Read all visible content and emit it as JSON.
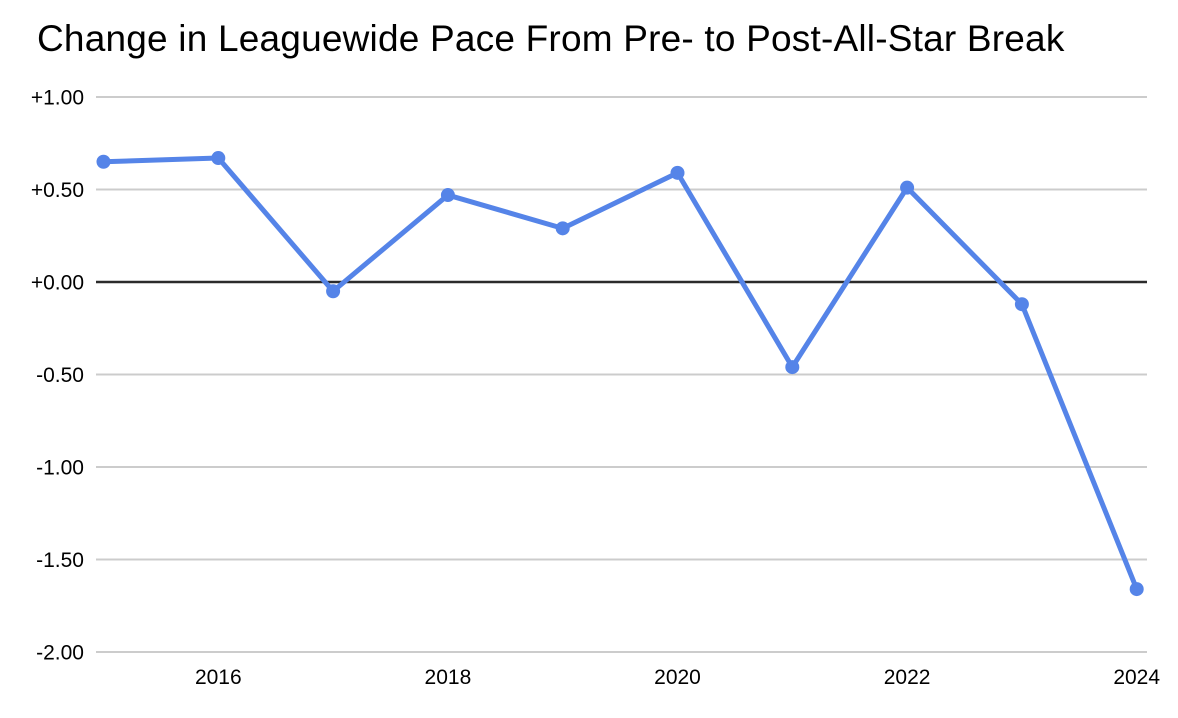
{
  "chart_data": {
    "type": "line",
    "title": "Change in Leaguewide Pace From Pre- to Post-All-Star Break",
    "xlabel": "",
    "ylabel": "",
    "x": [
      2015,
      2016,
      2017,
      2018,
      2019,
      2020,
      2021,
      2022,
      2023,
      2024
    ],
    "values": [
      0.65,
      0.67,
      -0.05,
      0.47,
      0.29,
      0.59,
      -0.46,
      0.51,
      -0.12,
      -1.66
    ],
    "xlim": [
      2015,
      2024
    ],
    "ylim": [
      -2.0,
      1.0
    ],
    "x_ticks": [
      {
        "value": 2016,
        "label": "2016"
      },
      {
        "value": 2018,
        "label": "2018"
      },
      {
        "value": 2020,
        "label": "2020"
      },
      {
        "value": 2022,
        "label": "2022"
      },
      {
        "value": 2024,
        "label": "2024"
      }
    ],
    "y_ticks": [
      {
        "value": 1.0,
        "label": "+1.00"
      },
      {
        "value": 0.5,
        "label": "+0.50"
      },
      {
        "value": 0.0,
        "label": "+0.00"
      },
      {
        "value": -0.5,
        "label": "-0.50"
      },
      {
        "value": -1.0,
        "label": "-1.00"
      },
      {
        "value": -1.5,
        "label": "-1.50"
      },
      {
        "value": -2.0,
        "label": "-2.00"
      }
    ],
    "grid": true,
    "legend": "none",
    "zero_baseline": true,
    "marker": "circle",
    "colors": {
      "line": "#5584E8",
      "marker": "#5584E8",
      "gridline": "#cccccc",
      "zero_line": "#2b2b2b",
      "tick_text": "#000000",
      "title_text": "#000000",
      "background": "#ffffff"
    }
  }
}
